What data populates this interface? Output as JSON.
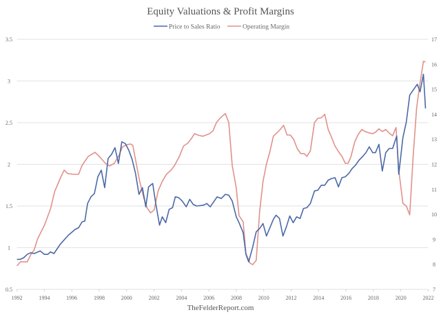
{
  "chart_data": {
    "type": "line",
    "title": "Equity Valuations & Profit Margins",
    "source": "TheFelderReport.com",
    "legend_placement": "top-center",
    "grid": true,
    "x_axis": {
      "range": [
        1992,
        2022
      ],
      "ticks": [
        "1992",
        "1994",
        "1996",
        "1998",
        "2000",
        "2002",
        "2004",
        "2006",
        "2008",
        "2010",
        "2012",
        "2014",
        "2016",
        "2018",
        "2020",
        "2022"
      ]
    },
    "y_left": {
      "range": [
        0.5,
        3.5
      ],
      "ticks": [
        "0.5",
        "1",
        "1.5",
        "2",
        "2.5",
        "3",
        "3.5"
      ]
    },
    "y_right": {
      "range": [
        7,
        17
      ],
      "ticks": [
        "7",
        "8",
        "9",
        "10",
        "11",
        "12",
        "13",
        "14",
        "15",
        "16",
        "17"
      ]
    },
    "series": [
      {
        "name": "Price to Sales Ratio",
        "axis": "left",
        "color": "#4a68a6",
        "points": [
          [
            1992.0,
            0.86
          ],
          [
            1992.25,
            0.86
          ],
          [
            1992.5,
            0.88
          ],
          [
            1992.75,
            0.92
          ],
          [
            1993.0,
            0.94
          ],
          [
            1993.25,
            0.93
          ],
          [
            1993.7,
            0.96
          ],
          [
            1994.0,
            0.92
          ],
          [
            1994.25,
            0.92
          ],
          [
            1994.45,
            0.95
          ],
          [
            1994.7,
            0.93
          ],
          [
            1995.15,
            1.04
          ],
          [
            1995.75,
            1.15
          ],
          [
            1996.25,
            1.22
          ],
          [
            1996.5,
            1.24
          ],
          [
            1996.75,
            1.31
          ],
          [
            1996.95,
            1.32
          ],
          [
            1997.15,
            1.53
          ],
          [
            1997.4,
            1.61
          ],
          [
            1997.65,
            1.65
          ],
          [
            1997.9,
            1.85
          ],
          [
            1998.15,
            1.93
          ],
          [
            1998.4,
            1.72
          ],
          [
            1998.65,
            2.07
          ],
          [
            1998.9,
            2.12
          ],
          [
            1999.15,
            2.2
          ],
          [
            1999.4,
            2.01
          ],
          [
            1999.65,
            2.27
          ],
          [
            1999.9,
            2.25
          ],
          [
            2000.15,
            2.17
          ],
          [
            2000.4,
            2.06
          ],
          [
            2000.65,
            1.89
          ],
          [
            2000.9,
            1.64
          ],
          [
            2001.15,
            1.72
          ],
          [
            2001.4,
            1.49
          ],
          [
            2001.6,
            1.73
          ],
          [
            2001.9,
            1.77
          ],
          [
            2002.1,
            1.55
          ],
          [
            2002.4,
            1.27
          ],
          [
            2002.6,
            1.37
          ],
          [
            2002.85,
            1.3
          ],
          [
            2003.1,
            1.46
          ],
          [
            2003.35,
            1.48
          ],
          [
            2003.55,
            1.61
          ],
          [
            2003.8,
            1.6
          ],
          [
            2004.05,
            1.56
          ],
          [
            2004.35,
            1.49
          ],
          [
            2004.6,
            1.58
          ],
          [
            2004.85,
            1.52
          ],
          [
            2005.1,
            1.5
          ],
          [
            2005.6,
            1.51
          ],
          [
            2005.85,
            1.53
          ],
          [
            2006.1,
            1.49
          ],
          [
            2006.35,
            1.55
          ],
          [
            2006.6,
            1.61
          ],
          [
            2006.9,
            1.59
          ],
          [
            2007.2,
            1.64
          ],
          [
            2007.45,
            1.63
          ],
          [
            2007.7,
            1.56
          ],
          [
            2008.0,
            1.37
          ],
          [
            2008.2,
            1.3
          ],
          [
            2008.5,
            1.18
          ],
          [
            2008.7,
            0.92
          ],
          [
            2008.9,
            0.83
          ],
          [
            2009.2,
            1.01
          ],
          [
            2009.45,
            1.19
          ],
          [
            2009.7,
            1.23
          ],
          [
            2009.95,
            1.29
          ],
          [
            2010.2,
            1.14
          ],
          [
            2010.45,
            1.24
          ],
          [
            2010.7,
            1.34
          ],
          [
            2010.9,
            1.39
          ],
          [
            2011.15,
            1.35
          ],
          [
            2011.4,
            1.14
          ],
          [
            2011.65,
            1.25
          ],
          [
            2011.9,
            1.38
          ],
          [
            2012.15,
            1.3
          ],
          [
            2012.4,
            1.37
          ],
          [
            2012.65,
            1.35
          ],
          [
            2012.9,
            1.47
          ],
          [
            2013.15,
            1.48
          ],
          [
            2013.4,
            1.53
          ],
          [
            2013.7,
            1.68
          ],
          [
            2013.95,
            1.69
          ],
          [
            2014.2,
            1.75
          ],
          [
            2014.45,
            1.75
          ],
          [
            2014.7,
            1.81
          ],
          [
            2014.95,
            1.83
          ],
          [
            2015.2,
            1.84
          ],
          [
            2015.45,
            1.73
          ],
          [
            2015.7,
            1.84
          ],
          [
            2015.95,
            1.85
          ],
          [
            2016.2,
            1.89
          ],
          [
            2016.45,
            1.95
          ],
          [
            2016.7,
            1.99
          ],
          [
            2016.95,
            2.05
          ],
          [
            2017.2,
            2.09
          ],
          [
            2017.45,
            2.14
          ],
          [
            2017.7,
            2.21
          ],
          [
            2017.95,
            2.14
          ],
          [
            2018.15,
            2.14
          ],
          [
            2018.4,
            2.24
          ],
          [
            2018.65,
            1.92
          ],
          [
            2018.9,
            2.14
          ],
          [
            2019.15,
            2.19
          ],
          [
            2019.4,
            2.19
          ],
          [
            2019.7,
            2.34
          ],
          [
            2019.85,
            1.88
          ],
          [
            2020.15,
            2.32
          ],
          [
            2020.4,
            2.51
          ],
          [
            2020.65,
            2.83
          ],
          [
            2020.9,
            2.89
          ],
          [
            2021.2,
            2.96
          ],
          [
            2021.4,
            2.87
          ],
          [
            2021.65,
            3.08
          ],
          [
            2021.8,
            2.67
          ]
        ]
      },
      {
        "name": "Operating Margin",
        "axis": "right",
        "color": "#e0918b",
        "points": [
          [
            1992.0,
            7.94
          ],
          [
            1992.25,
            8.1
          ],
          [
            1992.75,
            8.1
          ],
          [
            1993.0,
            8.38
          ],
          [
            1993.25,
            8.57
          ],
          [
            1993.5,
            9.01
          ],
          [
            1994.0,
            9.56
          ],
          [
            1994.45,
            10.22
          ],
          [
            1994.75,
            10.91
          ],
          [
            1995.2,
            11.49
          ],
          [
            1995.45,
            11.77
          ],
          [
            1995.7,
            11.63
          ],
          [
            1996.15,
            11.6
          ],
          [
            1996.5,
            11.6
          ],
          [
            1996.75,
            11.96
          ],
          [
            1997.2,
            12.32
          ],
          [
            1997.7,
            12.48
          ],
          [
            1998.05,
            12.29
          ],
          [
            1998.45,
            12.04
          ],
          [
            1998.75,
            11.93
          ],
          [
            1999.1,
            12.04
          ],
          [
            1999.45,
            12.37
          ],
          [
            1999.7,
            12.7
          ],
          [
            2000.05,
            12.79
          ],
          [
            2000.3,
            12.81
          ],
          [
            2000.45,
            12.76
          ],
          [
            2000.7,
            12.04
          ],
          [
            2000.95,
            11.32
          ],
          [
            2001.25,
            10.66
          ],
          [
            2001.5,
            10.25
          ],
          [
            2001.75,
            10.06
          ],
          [
            2002.0,
            10.17
          ],
          [
            2002.3,
            10.94
          ],
          [
            2002.6,
            11.32
          ],
          [
            2002.9,
            11.6
          ],
          [
            2003.25,
            11.77
          ],
          [
            2003.5,
            11.96
          ],
          [
            2003.85,
            12.32
          ],
          [
            2004.15,
            12.73
          ],
          [
            2004.45,
            12.84
          ],
          [
            2004.7,
            13.01
          ],
          [
            2004.95,
            13.23
          ],
          [
            2005.2,
            13.17
          ],
          [
            2005.55,
            13.12
          ],
          [
            2005.8,
            13.17
          ],
          [
            2006.05,
            13.23
          ],
          [
            2006.3,
            13.34
          ],
          [
            2006.55,
            13.67
          ],
          [
            2006.8,
            13.84
          ],
          [
            2007.2,
            14.03
          ],
          [
            2007.45,
            13.67
          ],
          [
            2007.7,
            11.96
          ],
          [
            2008.0,
            11.05
          ],
          [
            2008.2,
            9.95
          ],
          [
            2008.5,
            9.7
          ],
          [
            2008.7,
            8.43
          ],
          [
            2009.0,
            8.05
          ],
          [
            2009.2,
            7.99
          ],
          [
            2009.45,
            8.16
          ],
          [
            2009.7,
            10.11
          ],
          [
            2009.95,
            11.32
          ],
          [
            2010.2,
            12.01
          ],
          [
            2010.45,
            12.51
          ],
          [
            2010.7,
            13.12
          ],
          [
            2010.95,
            13.25
          ],
          [
            2011.2,
            13.39
          ],
          [
            2011.45,
            13.56
          ],
          [
            2011.7,
            13.17
          ],
          [
            2011.95,
            13.17
          ],
          [
            2012.2,
            12.98
          ],
          [
            2012.45,
            12.62
          ],
          [
            2012.7,
            12.43
          ],
          [
            2012.95,
            12.43
          ],
          [
            2013.15,
            12.32
          ],
          [
            2013.4,
            12.54
          ],
          [
            2013.7,
            13.67
          ],
          [
            2013.95,
            13.84
          ],
          [
            2014.2,
            13.86
          ],
          [
            2014.45,
            14.0
          ],
          [
            2014.7,
            13.39
          ],
          [
            2014.9,
            13.14
          ],
          [
            2015.2,
            12.73
          ],
          [
            2015.45,
            12.51
          ],
          [
            2015.7,
            12.32
          ],
          [
            2015.95,
            12.04
          ],
          [
            2016.15,
            12.04
          ],
          [
            2016.35,
            12.29
          ],
          [
            2016.65,
            12.92
          ],
          [
            2016.9,
            13.2
          ],
          [
            2017.15,
            13.39
          ],
          [
            2017.4,
            13.31
          ],
          [
            2017.7,
            13.25
          ],
          [
            2017.95,
            13.23
          ],
          [
            2018.15,
            13.28
          ],
          [
            2018.4,
            13.42
          ],
          [
            2018.65,
            13.31
          ],
          [
            2018.9,
            13.39
          ],
          [
            2019.15,
            13.25
          ],
          [
            2019.4,
            13.14
          ],
          [
            2019.65,
            13.47
          ],
          [
            2019.85,
            11.77
          ],
          [
            2020.15,
            10.44
          ],
          [
            2020.4,
            10.33
          ],
          [
            2020.65,
            9.98
          ],
          [
            2020.9,
            12.32
          ],
          [
            2021.15,
            14.25
          ],
          [
            2021.35,
            15.07
          ],
          [
            2021.65,
            16.12
          ],
          [
            2021.8,
            16.09
          ]
        ]
      }
    ]
  }
}
